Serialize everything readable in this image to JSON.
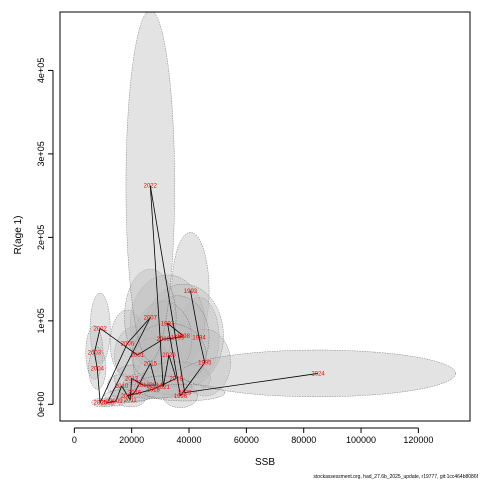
{
  "chart_data": {
    "type": "scatter",
    "title": "",
    "xlabel": "SSB",
    "ylabel": "R(age 1)",
    "xlim": [
      -5000,
      138000
    ],
    "ylim": [
      -20000,
      470000
    ],
    "x_ticks": [
      0,
      20000,
      40000,
      60000,
      80000,
      100000,
      120000
    ],
    "x_tick_labels": [
      "0",
      "20000",
      "40000",
      "60000",
      "80000",
      "100000",
      "120000"
    ],
    "y_ticks": [
      0,
      100000,
      200000,
      300000,
      400000
    ],
    "y_tick_labels": [
      "0e+00",
      "1e+05",
      "2e+05",
      "3e+05",
      "4e+05"
    ],
    "grid": false,
    "footnote": "stockassessment.org, had_27.6b_2025_update, r19777, git:1cc464b8086f",
    "point_color": "#ff0000",
    "line_color": "#000000",
    "ellipse_fill": "#bdbdbd",
    "ellipse_stroke": "#555555",
    "points": [
      {
        "year": "1993",
        "ssb": 40500,
        "rec": 136000,
        "sx": 6500,
        "sy": 70000
      },
      {
        "year": "1994",
        "ssb": 43500,
        "rec": 80000,
        "sx": 7000,
        "sy": 48000
      },
      {
        "year": "1995",
        "ssb": 45500,
        "rec": 50000,
        "sx": 9000,
        "sy": 40000
      },
      {
        "year": "1996",
        "ssb": 37000,
        "rec": 10000,
        "sx": 6000,
        "sy": 14000
      },
      {
        "year": "1997",
        "ssb": 32500,
        "rec": 97000,
        "sx": 13000,
        "sy": 58000
      },
      {
        "year": "1998",
        "ssb": 38000,
        "rec": 82000,
        "sx": 14000,
        "sy": 62000
      },
      {
        "year": "1999",
        "ssb": 36000,
        "rec": 80000,
        "sx": 11000,
        "sy": 50000
      },
      {
        "year": "2000",
        "ssb": 31000,
        "rec": 78000,
        "sx": 10000,
        "sy": 45000
      },
      {
        "year": "2001",
        "ssb": 22000,
        "rec": 59000,
        "sx": 8000,
        "sy": 35000
      },
      {
        "year": "2002",
        "ssb": 9000,
        "rec": 91000,
        "sx": 3500,
        "sy": 42000
      },
      {
        "year": "2003",
        "ssb": 7000,
        "rec": 62000,
        "sx": 3000,
        "sy": 32000
      },
      {
        "year": "2004",
        "ssb": 8000,
        "rec": 43000,
        "sx": 3000,
        "sy": 25000
      },
      {
        "year": "2005",
        "ssb": 9000,
        "rec": 2000,
        "sx": 3000,
        "sy": 5000
      },
      {
        "year": "2006",
        "ssb": 18500,
        "rec": 73000,
        "sx": 6000,
        "sy": 40000
      },
      {
        "year": "2007",
        "ssb": 26500,
        "rec": 104000,
        "sx": 9000,
        "sy": 58000
      },
      {
        "year": "2008",
        "ssb": 11500,
        "rec": 2000,
        "sx": 3000,
        "sy": 5000
      },
      {
        "year": "2009",
        "ssb": 14500,
        "rec": 4000,
        "sx": 3500,
        "sy": 6000
      },
      {
        "year": "2010",
        "ssb": 16500,
        "rec": 22000,
        "sx": 5000,
        "sy": 14000
      },
      {
        "year": "2011",
        "ssb": 19500,
        "rec": 5000,
        "sx": 5000,
        "sy": 8000
      },
      {
        "year": "2012",
        "ssb": 20000,
        "rec": 31000,
        "sx": 6000,
        "sy": 16000
      },
      {
        "year": "2013",
        "ssb": 24000,
        "rec": 23000,
        "sx": 7000,
        "sy": 14000
      },
      {
        "year": "2014",
        "ssb": 28500,
        "rec": 23000,
        "sx": 9000,
        "sy": 16000
      },
      {
        "year": "2015",
        "ssb": 26500,
        "rec": 49000,
        "sx": 6000,
        "sy": 30000
      },
      {
        "year": "2016",
        "ssb": 21000,
        "rec": 14000,
        "sx": 8000,
        "sy": 10000
      },
      {
        "year": "2017",
        "ssb": 18500,
        "rec": 10000,
        "sx": 8000,
        "sy": 8000
      },
      {
        "year": "2018",
        "ssb": 27500,
        "rec": 18000,
        "sx": 12000,
        "sy": 11000
      },
      {
        "year": "2019",
        "ssb": 35500,
        "rec": 31000,
        "sx": 12000,
        "sy": 20000
      },
      {
        "year": "2020",
        "ssb": 33000,
        "rec": 59000,
        "sx": 13000,
        "sy": 38000
      },
      {
        "year": "2021",
        "ssb": 31000,
        "rec": 21000,
        "sx": 10000,
        "sy": 13000
      },
      {
        "year": "2022",
        "ssb": 26500,
        "rec": 262000,
        "sx": 8500,
        "sy": 210000
      },
      {
        "year": "2023",
        "ssb": 38500,
        "rec": 14000,
        "sx": 14000,
        "sy": 10000
      },
      {
        "year": "2024",
        "ssb": 85000,
        "rec": 37000,
        "sx": 48000,
        "sy": 28000
      }
    ]
  }
}
